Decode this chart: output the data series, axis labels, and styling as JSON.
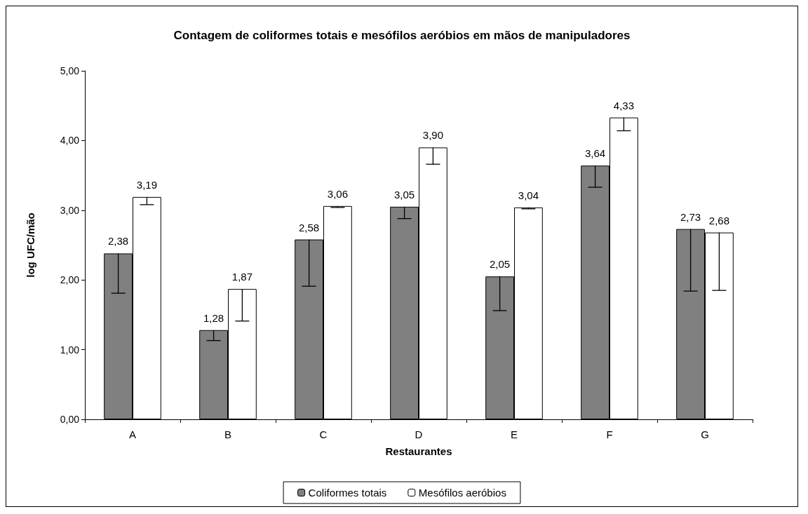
{
  "chart_data": {
    "type": "bar",
    "title": "Contagem de coliformes totais e mesófilos aeróbios em mãos de manipuladores",
    "xlabel": "Restaurantes",
    "ylabel": "log UFC/mão",
    "categories": [
      "A",
      "B",
      "C",
      "D",
      "E",
      "F",
      "G"
    ],
    "series": [
      {
        "name": "Coliformes totais",
        "color": "#808080",
        "values": [
          2.38,
          1.28,
          2.58,
          3.05,
          2.05,
          3.64,
          2.73
        ],
        "value_labels": [
          "2,38",
          "1,28",
          "2,58",
          "3,05",
          "2,05",
          "3,64",
          "2,73"
        ],
        "errors": [
          [
            1.81,
            2.38
          ],
          [
            1.13,
            1.28
          ],
          [
            1.91,
            2.58
          ],
          [
            2.88,
            3.05
          ],
          [
            1.56,
            2.05
          ],
          [
            3.33,
            3.64
          ],
          [
            1.84,
            2.73
          ]
        ]
      },
      {
        "name": "Mesófilos aeróbios",
        "color": "#ffffff",
        "values": [
          3.19,
          1.87,
          3.06,
          3.9,
          3.04,
          4.33,
          2.68
        ],
        "value_labels": [
          "3,19",
          "1,87",
          "3,06",
          "3,90",
          "3,04",
          "4,33",
          "2,68"
        ],
        "errors": [
          [
            3.08,
            3.19
          ],
          [
            1.41,
            1.87
          ],
          [
            3.04,
            3.06
          ],
          [
            3.66,
            3.9
          ],
          [
            3.02,
            3.04
          ],
          [
            4.14,
            4.33
          ],
          [
            1.85,
            2.68
          ]
        ]
      }
    ],
    "ylim": [
      0,
      5
    ],
    "yticks": [
      {
        "value": 0,
        "label": "0,00"
      },
      {
        "value": 1,
        "label": "1,00"
      },
      {
        "value": 2,
        "label": "2,00"
      },
      {
        "value": 3,
        "label": "3,00"
      },
      {
        "value": 4,
        "label": "4,00"
      },
      {
        "value": 5,
        "label": "5,00"
      }
    ],
    "grid": false,
    "legend": "bottom"
  }
}
